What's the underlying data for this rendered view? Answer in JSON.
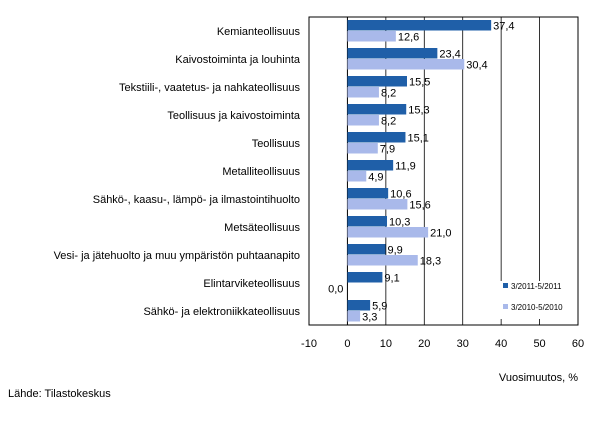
{
  "chart_data": {
    "type": "bar",
    "orientation": "horizontal",
    "categories": [
      "Kemianteollisuus",
      "Kaivostoiminta ja louhinta",
      "Tekstiili-, vaatetus- ja nahkateollisuus",
      "Teollisuus ja kaivostoiminta",
      "Teollisuus",
      "Metalliteollisuus",
      "Sähkö-, kaasu-, lämpö- ja ilmastointihuolto",
      "Metsäteollisuus",
      "Vesi- ja jätehuolto ja muu ympäristön puhtaanapito",
      "Elintarviketeollisuus",
      "Sähkö- ja elektroniikkateollisuus"
    ],
    "series": [
      {
        "name": "3/2011-5/2011",
        "color": "#1f5fa8",
        "values": [
          37.4,
          23.4,
          15.5,
          15.3,
          15.1,
          11.9,
          10.6,
          10.3,
          9.9,
          9.1,
          5.9
        ],
        "labels": [
          "37,4",
          "23,4",
          "15,5",
          "15,3",
          "15,1",
          "11,9",
          "10,6",
          "10,3",
          "9,9",
          "9,1",
          "5,9"
        ]
      },
      {
        "name": "3/2010-5/2010",
        "color": "#a9b9ea",
        "values": [
          12.6,
          30.4,
          8.2,
          8.2,
          7.9,
          4.9,
          15.6,
          21.0,
          18.3,
          0.0,
          3.3
        ],
        "labels": [
          "12,6",
          "30,4",
          "8,2",
          "8,2",
          "7,9",
          "4,9",
          "15,6",
          "21,0",
          "18,3",
          "0,0",
          "3,3"
        ]
      }
    ],
    "xlabel": "Vuosimuutos, %",
    "xlim": [
      -10,
      60
    ],
    "xticks": [
      -10,
      0,
      10,
      20,
      30,
      40,
      50,
      60
    ],
    "grid": "vertical",
    "legend_position": "right"
  },
  "footer": {
    "source": "Lähde: Tilastokeskus"
  }
}
